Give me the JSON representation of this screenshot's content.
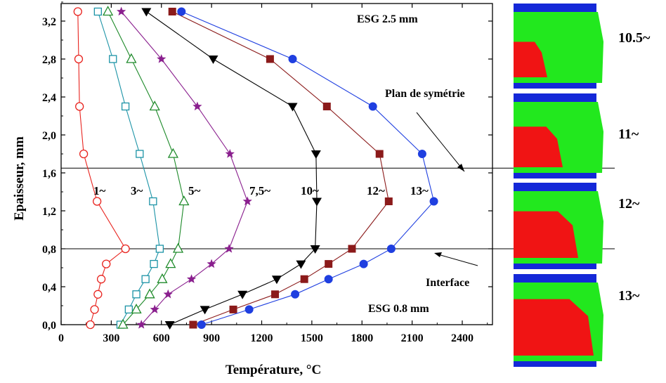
{
  "chart_data": {
    "type": "line",
    "xlabel": "Température, °C",
    "ylabel": "Epaisseur, mm",
    "xlim": [
      0,
      2600
    ],
    "ylim": [
      0,
      3.4
    ],
    "xticks": [
      "0",
      "300",
      "600",
      "900",
      "1200",
      "1500",
      "1800",
      "2100",
      "2400"
    ],
    "yticks": [
      "0,0",
      "0,4",
      "0,8",
      "1,2",
      "1,6",
      "2,0",
      "2,4",
      "2,8",
      "3,2"
    ],
    "hlines": [
      1.65,
      0.8
    ],
    "annotations": {
      "top_label": "ESG 2.5 mm",
      "bottom_label": "ESG 0.8 mm",
      "symmetry": "Plan de symétrie",
      "interface": "Interface"
    },
    "series": [
      {
        "label": "1~",
        "color": "#e8231e",
        "marker": "circle-open",
        "x": [
          100,
          105,
          110,
          135,
          215,
          385,
          270,
          240,
          220,
          200,
          175
        ],
        "y": [
          3.3,
          2.8,
          2.3,
          1.8,
          1.3,
          0.8,
          0.64,
          0.48,
          0.32,
          0.16,
          0.0
        ]
      },
      {
        "label": "3~",
        "color": "#1b93a6",
        "marker": "square-open",
        "x": [
          220,
          310,
          385,
          470,
          550,
          590,
          555,
          505,
          450,
          405,
          355
        ],
        "y": [
          3.3,
          2.8,
          2.3,
          1.8,
          1.3,
          0.8,
          0.64,
          0.48,
          0.32,
          0.16,
          0.0
        ]
      },
      {
        "label": "5~",
        "color": "#1e8a2a",
        "marker": "triangle-open",
        "x": [
          280,
          420,
          560,
          670,
          735,
          700,
          655,
          605,
          530,
          450,
          370
        ],
        "y": [
          3.3,
          2.8,
          2.3,
          1.8,
          1.3,
          0.8,
          0.64,
          0.48,
          0.32,
          0.16,
          0.0
        ]
      },
      {
        "label": "7,5~",
        "color": "#8a1f8e",
        "marker": "star",
        "x": [
          360,
          600,
          815,
          1010,
          1115,
          1005,
          900,
          780,
          640,
          560,
          480
        ],
        "y": [
          3.3,
          2.8,
          2.3,
          1.8,
          1.3,
          0.8,
          0.64,
          0.48,
          0.32,
          0.16,
          0.0
        ]
      },
      {
        "label": "10~",
        "color": "#000000",
        "marker": "triangle-down",
        "x": [
          510,
          910,
          1385,
          1525,
          1530,
          1520,
          1435,
          1290,
          1085,
          860,
          650
        ],
        "y": [
          3.3,
          2.8,
          2.3,
          1.8,
          1.3,
          0.8,
          0.64,
          0.48,
          0.32,
          0.16,
          0.0
        ]
      },
      {
        "label": "12~",
        "color": "#8b1a1a",
        "marker": "square",
        "x": [
          665,
          1250,
          1590,
          1905,
          1960,
          1740,
          1600,
          1455,
          1280,
          1030,
          790
        ],
        "y": [
          3.3,
          2.8,
          2.3,
          1.8,
          1.3,
          0.8,
          0.64,
          0.48,
          0.32,
          0.16,
          0.0
        ]
      },
      {
        "label": "13~",
        "color": "#1f3fe0",
        "marker": "circle",
        "x": [
          720,
          1385,
          1865,
          2160,
          2230,
          1975,
          1810,
          1600,
          1400,
          1125,
          840
        ],
        "y": [
          3.3,
          2.8,
          2.3,
          1.8,
          1.3,
          0.8,
          0.64,
          0.48,
          0.32,
          0.16,
          0.0
        ]
      }
    ]
  },
  "side_panels": {
    "labels": [
      "10.5~",
      "11~",
      "12~",
      "13~"
    ],
    "colors": {
      "blue": "#1428d8",
      "green": "#22e81e",
      "red": "#f01414"
    }
  }
}
